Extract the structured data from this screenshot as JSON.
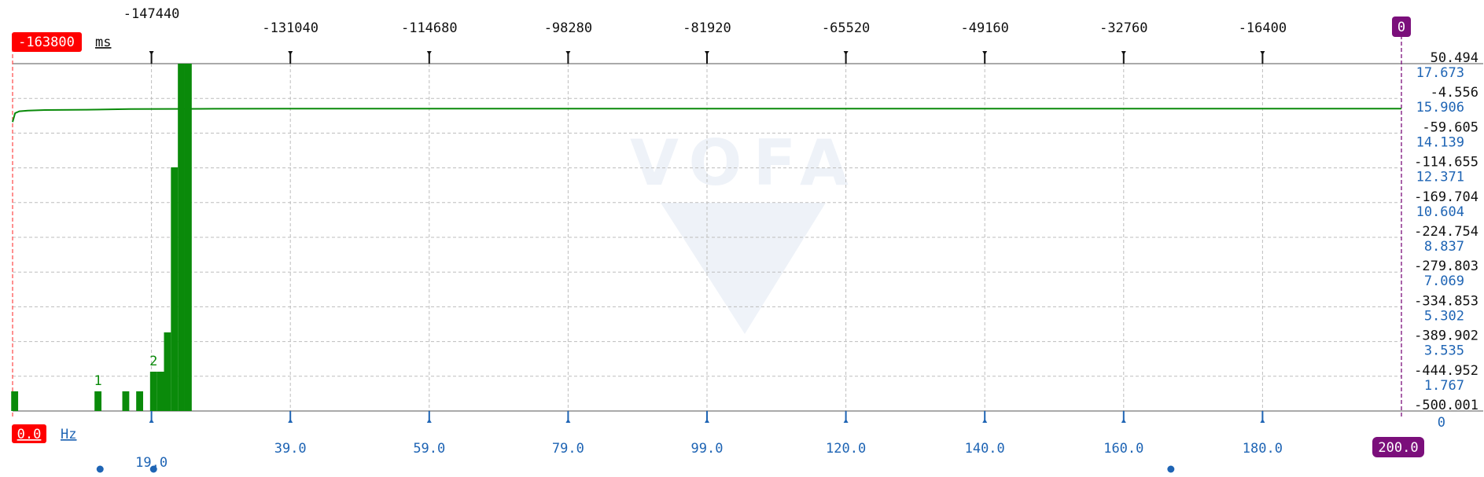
{
  "chart_data": [
    {
      "type": "line",
      "x_axis": {
        "unit": "ms",
        "min_label": "-163800",
        "max_label": "0",
        "tick_labels": [
          "-147440",
          "-131040",
          "-114680",
          "-98280",
          "-81920",
          "-65520",
          "-49160",
          "-32760",
          "-16400"
        ]
      },
      "y_axis_right": {
        "labels": [
          "50.494",
          "-4.556",
          "-59.605",
          "-114.655",
          "-169.704",
          "-224.754",
          "-279.803",
          "-334.853",
          "-389.902",
          "-444.952",
          "-500.001"
        ]
      },
      "series": [
        {
          "color": "#0a8a0a",
          "x": [
            -163800,
            -163500,
            -163000,
            -162000,
            -160000,
            -155000,
            -150000,
            -140000,
            -120000,
            -90000,
            -60000,
            -30000,
            0
          ],
          "y": [
            -42,
            -28,
            -25,
            -24,
            -23,
            -22.5,
            -21.5,
            -21,
            -20.8,
            -20.8,
            -20.8,
            -20.8,
            -20.8
          ]
        }
      ],
      "grid": true
    },
    {
      "type": "bar",
      "x_axis": {
        "unit": "Hz",
        "min_label": "0.0",
        "max_label": "200.0",
        "tick_labels": [
          "19.0",
          "39.0",
          "59.0",
          "79.0",
          "99.0",
          "120.0",
          "140.0",
          "160.0",
          "180.0"
        ]
      },
      "y_axis_right": {
        "labels": [
          "17.673",
          "15.906",
          "14.139",
          "12.371",
          "10.604",
          "8.837",
          "7.069",
          "5.302",
          "3.535",
          "1.767",
          "0"
        ]
      },
      "bar_color": "#0a8a0a",
      "x": [
        0.3,
        12.3,
        16.3,
        18.3,
        20.3,
        21.3,
        22.3,
        23.3,
        24.3,
        25.3
      ],
      "values": [
        1.0,
        1.0,
        1.0,
        1.0,
        2.0,
        2.0,
        4.0,
        12.4,
        17.673,
        17.673
      ],
      "annotations": [
        {
          "text": "1",
          "x": 12.3,
          "y": 1.0
        },
        {
          "text": "2",
          "x": 20.3,
          "y": 2.0
        }
      ],
      "markers": [
        {
          "x": 12.6
        },
        {
          "x": 20.3
        },
        {
          "x": 166.8
        }
      ]
    }
  ],
  "watermark": "VOFA"
}
